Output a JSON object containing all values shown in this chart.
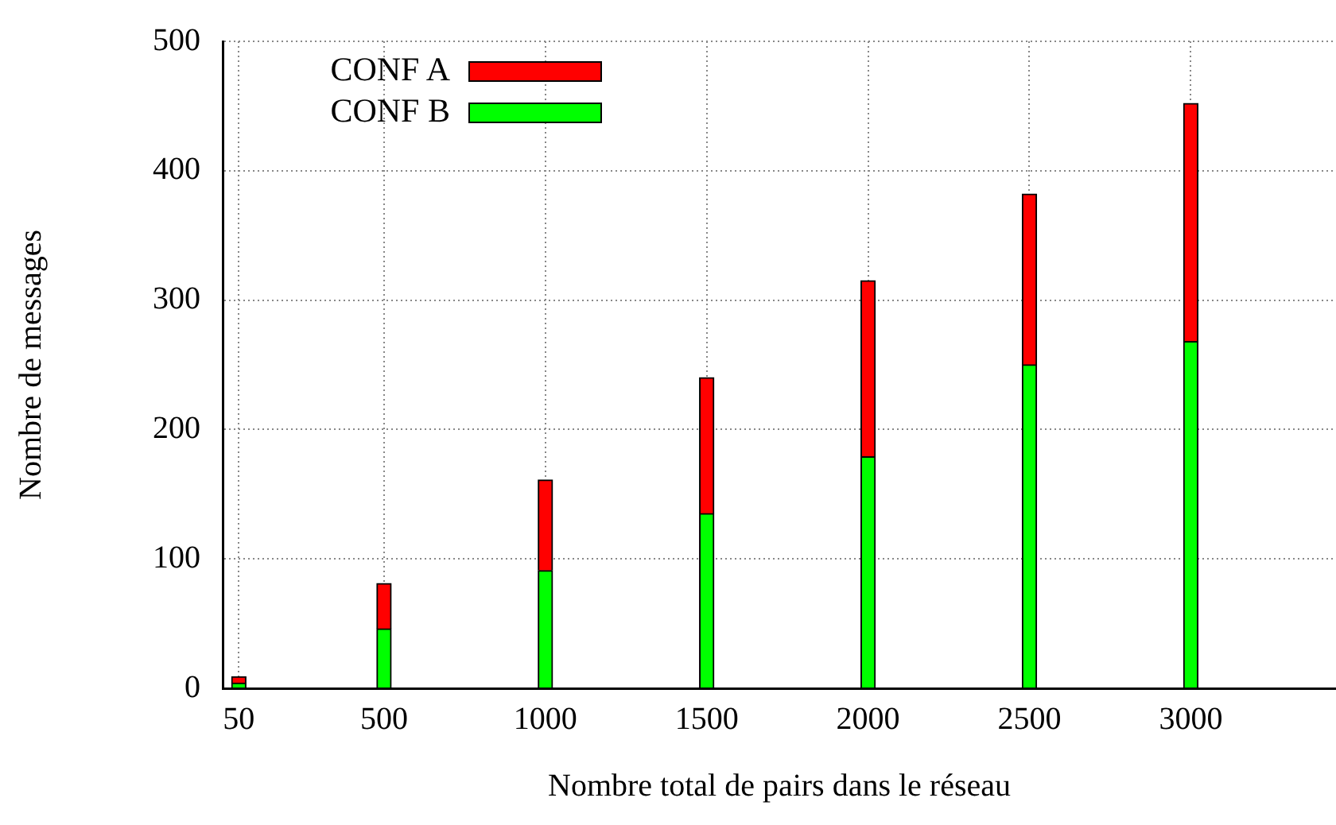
{
  "chart_data": {
    "type": "bar",
    "xlabel": "Nombre total de pairs dans le réseau",
    "ylabel": "Nombre de messages",
    "x": [
      50,
      500,
      1000,
      1500,
      2000,
      2500,
      3000
    ],
    "stacked": true,
    "series": [
      {
        "name": "CONF B",
        "color": "#00ff00",
        "values": [
          4,
          46,
          91,
          135,
          179,
          250,
          268
        ]
      },
      {
        "name": "CONF A",
        "color": "#ff0000",
        "values": [
          5,
          35,
          70,
          105,
          136,
          132,
          184
        ]
      }
    ],
    "xlim": [
      0,
      3450
    ],
    "xticks": [
      50,
      500,
      1000,
      1500,
      2000,
      2500,
      3000
    ],
    "ylim": [
      0,
      500
    ],
    "yticks": [
      0,
      100,
      200,
      300,
      400,
      500
    ],
    "grid": true,
    "legend": "top left"
  }
}
